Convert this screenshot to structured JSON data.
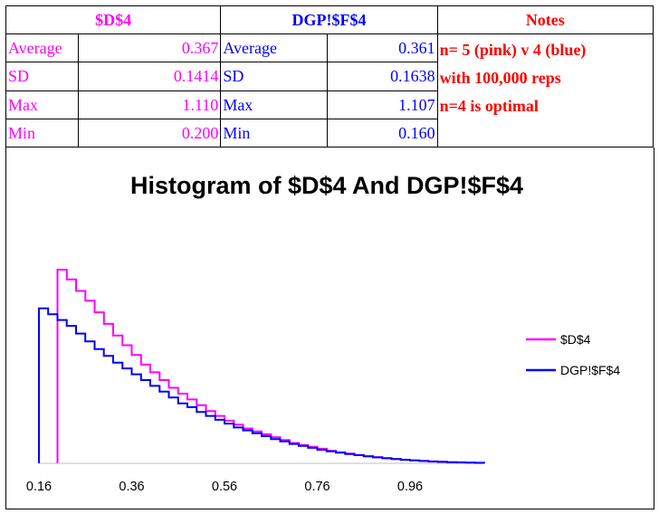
{
  "table": {
    "headers": [
      "$D$4",
      "DGP!$F$4",
      "Notes"
    ],
    "left": [
      {
        "label": "Average",
        "value": "0.367"
      },
      {
        "label": "SD",
        "value": "0.1414"
      },
      {
        "label": "Max",
        "value": "1.110"
      },
      {
        "label": "Min",
        "value": "0.200"
      }
    ],
    "right": [
      {
        "label": "Average",
        "value": "0.361"
      },
      {
        "label": "SD",
        "value": "0.1638"
      },
      {
        "label": "Max",
        "value": "1.107"
      },
      {
        "label": "Min",
        "value": "0.160"
      }
    ],
    "notes": [
      "n= 5 (pink) v 4 (blue)",
      "with 100,000 reps",
      "n=4 is optimal"
    ]
  },
  "colors": {
    "pink": "#ff00ff",
    "blue": "#0000ff",
    "notes": "#ff0000"
  },
  "chart_data": {
    "type": "line",
    "title": "Histogram of $D$4 And DGP!$F$4",
    "xlabel": "",
    "ylabel": "",
    "x_ticks": [
      "0.16",
      "0.36",
      "0.56",
      "0.76",
      "0.96"
    ],
    "xlim": [
      0.16,
      1.12
    ],
    "bin_width": 0.02,
    "legend_position": "right",
    "series": [
      {
        "name": "$D$4",
        "color": "#ff00ff",
        "start": 0.2,
        "values": [
          1.0,
          0.95,
          0.89,
          0.84,
          0.78,
          0.72,
          0.66,
          0.61,
          0.56,
          0.51,
          0.47,
          0.43,
          0.39,
          0.36,
          0.33,
          0.3,
          0.27,
          0.245,
          0.22,
          0.2,
          0.18,
          0.165,
          0.15,
          0.135,
          0.12,
          0.105,
          0.095,
          0.085,
          0.075,
          0.065,
          0.057,
          0.05,
          0.043,
          0.037,
          0.032,
          0.027,
          0.022,
          0.018,
          0.015,
          0.012,
          0.009,
          0.007,
          0.005,
          0.004,
          0.003,
          0.002
        ]
      },
      {
        "name": "DGP!$F$4",
        "color": "#0000ff",
        "start": 0.16,
        "values": [
          0.8,
          0.77,
          0.74,
          0.71,
          0.67,
          0.63,
          0.59,
          0.555,
          0.52,
          0.49,
          0.46,
          0.43,
          0.4,
          0.37,
          0.34,
          0.31,
          0.29,
          0.265,
          0.245,
          0.225,
          0.205,
          0.185,
          0.17,
          0.155,
          0.14,
          0.125,
          0.113,
          0.1,
          0.09,
          0.08,
          0.07,
          0.062,
          0.055,
          0.048,
          0.042,
          0.036,
          0.031,
          0.026,
          0.022,
          0.018,
          0.015,
          0.012,
          0.01,
          0.008,
          0.006,
          0.005,
          0.004,
          0.003
        ]
      }
    ]
  }
}
